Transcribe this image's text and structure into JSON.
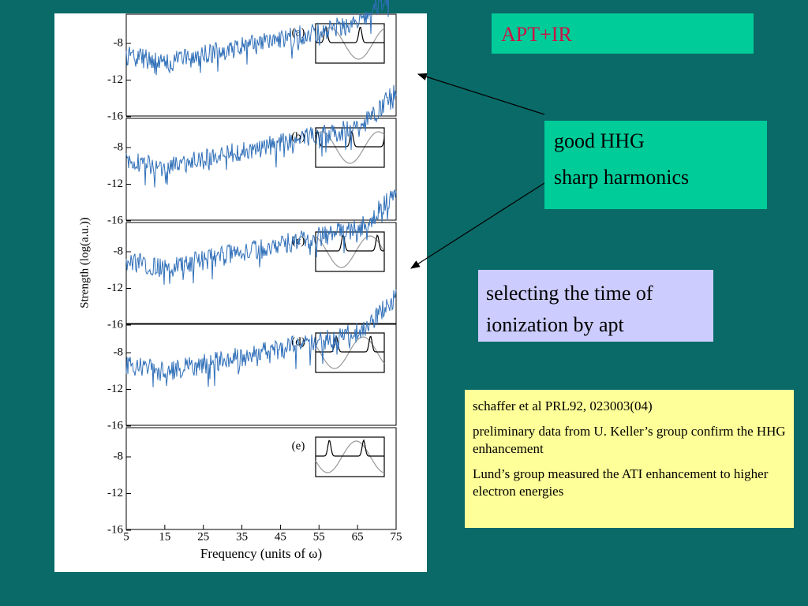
{
  "header": {
    "title": "APT+IR"
  },
  "figure": {
    "y_label": "Strength (log(a.u.))",
    "x_label": "Frequency (units of ω)",
    "y_ticks": [
      "-8",
      "-12",
      "-16"
    ],
    "x_ticks": [
      "5",
      "15",
      "25",
      "35",
      "45",
      "55",
      "65",
      "75"
    ],
    "panels": [
      "(a)",
      "(b)",
      "(c)",
      "(d)",
      "(e)"
    ]
  },
  "boxes": {
    "observation": [
      "good HHG",
      "sharp harmonics"
    ],
    "explanation": "selecting the time of ionization by apt",
    "notes": [
      "schaffer et al  PRL92, 023003(04)",
      "preliminary data from U. Keller’s group confirm the HHG enhancement",
      "Lund’s group measured the ATI enhancement to higher electron energies"
    ]
  }
}
